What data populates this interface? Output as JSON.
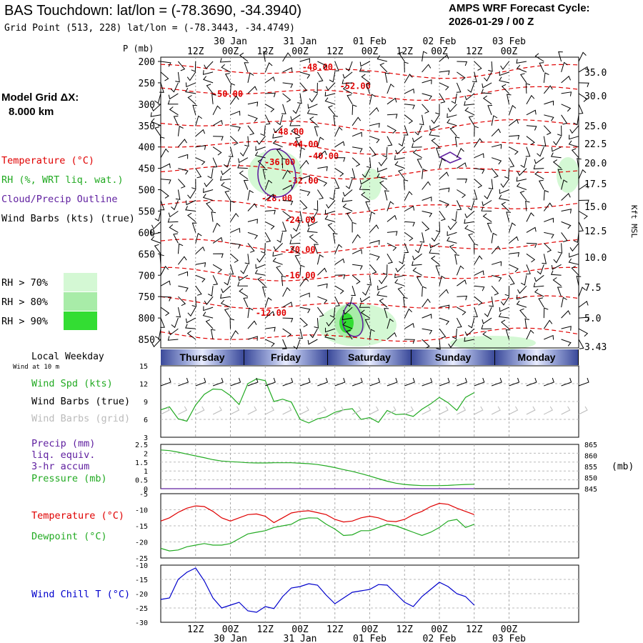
{
  "header": {
    "title": "BAS Touchdown:  lat/lon = (-78.3690, -34.3940)",
    "grid_point": "Grid Point (513, 228) lat/lon = (-78.3443, -34.4749)",
    "cycle_line1": "AMPS WRF Forecast Cycle:",
    "cycle_line2": "2026-01-29 / 00  Z"
  },
  "side": {
    "model_grid_line1": "Model Grid ΔX:",
    "model_grid_line2": "8.000 km",
    "temperature": "Temperature (°C)",
    "rh": "RH (%, WRT liq. wat.)",
    "cloud": "Cloud/Precip Outline",
    "barbs": "Wind Barbs (kts) (true)",
    "rh70": "RH > 70%",
    "rh80": "RH > 80%",
    "rh90": "RH > 90%",
    "local_weekday": "Local Weekday",
    "wind_at": "Wind at 10 m",
    "wind_spd": "Wind Spd (kts)",
    "wind_barbs_true": "Wind Barbs (true)",
    "wind_barbs_grid": "Wind Barbs (grid)",
    "precip1": "Precip (mm)",
    "precip2": "liq. equiv.",
    "precip3": "3-hr accum",
    "pressure": "Pressure (mb)",
    "temp2": "Temperature (°C)",
    "dewpoint": "Dewpoint (°C)",
    "windchill": "Wind Chill T (°C)"
  },
  "colors": {
    "temperature": "#e00000",
    "rh": "#22aa22",
    "cloud": "#6020a0",
    "grid_barbs": "#bbbbbb",
    "windchill": "#0000cc",
    "rh70": "#d4f8d4",
    "rh80": "#a8eca8",
    "rh90": "#33dd33"
  },
  "weekdays": [
    "Thursday",
    "Friday",
    "Saturday",
    "Sunday",
    "Monday"
  ],
  "chart_data": [
    {
      "type": "heatmap",
      "name": "upper-air time-height section",
      "x_tick_labels_top": [
        "12Z",
        "00Z",
        "12Z",
        "00Z",
        "12Z",
        "00Z",
        "12Z",
        "00Z",
        "12Z",
        "00Z"
      ],
      "x_date_labels_top": [
        "30 Jan",
        "31 Jan",
        "01 Feb",
        "02 Feb",
        "03 Feb"
      ],
      "ylabel": "P (mb)",
      "y_ticks_mb": [
        200,
        250,
        300,
        350,
        400,
        450,
        500,
        550,
        600,
        650,
        700,
        750,
        800,
        850
      ],
      "right_label": "Kft MSL",
      "right_ticks_kft": [
        "35.0",
        "30.0",
        "25.0",
        "22.5",
        "20.0",
        "17.5",
        "15.0",
        "12.5",
        "10.0",
        "7.5",
        "5.0",
        "3.43"
      ],
      "isotherm_labels": [
        {
          "text": "-48.00",
          "hour": 18,
          "mb": 213
        },
        {
          "text": "-52.00",
          "hour": 31,
          "mb": 258
        },
        {
          "text": "-50.00",
          "hour": -13,
          "mb": 276
        },
        {
          "text": "-48.00",
          "hour": 8,
          "mb": 365
        },
        {
          "text": "-44.00",
          "hour": 13,
          "mb": 394
        },
        {
          "text": "-40.00",
          "hour": 20,
          "mb": 421
        },
        {
          "text": "-36.00",
          "hour": 5,
          "mb": 436
        },
        {
          "text": "-32.00",
          "hour": 13,
          "mb": 479
        },
        {
          "text": "-28.00",
          "hour": 4,
          "mb": 520
        },
        {
          "text": "-24.00",
          "hour": 12,
          "mb": 571
        },
        {
          "text": "-20.00",
          "hour": 12,
          "mb": 640
        },
        {
          "text": "-16.00",
          "hour": 12,
          "mb": 700
        },
        {
          "text": "-12.00",
          "hour": 2,
          "mb": 788
        }
      ]
    },
    {
      "type": "line",
      "name": "10 m wind speed",
      "x_start_hour": -36,
      "x_step_hours": 3,
      "ylim": [
        3,
        15
      ],
      "y_ticks": [
        3,
        6,
        9,
        12,
        15
      ],
      "series": [
        {
          "name": "Wind Spd (kts)",
          "values": [
            7.6,
            8.1,
            6.1,
            5.7,
            8.4,
            10.2,
            11.1,
            11.0,
            10.0,
            8.5,
            12.0,
            12.8,
            12.5,
            9.0,
            9.4,
            8.9,
            6.0,
            5.4,
            6.1,
            6.4,
            7.2,
            7.6,
            7.8,
            6.0,
            6.3,
            5.5,
            7.5,
            6.8,
            6.9,
            6.5,
            7.7,
            8.6,
            9.7,
            8.8,
            7.5,
            9.7,
            10.5
          ]
        }
      ]
    },
    {
      "type": "line",
      "name": "precipitation and pressure",
      "x_start_hour": -36,
      "x_step_hours": 3,
      "ylim_left": [
        0,
        2.5
      ],
      "y_ticks_left": [
        0.0,
        0.5,
        1.0,
        1.5,
        2.0,
        2.5
      ],
      "ylim_right": [
        845,
        865
      ],
      "y_ticks_right": [
        845,
        850,
        855,
        860,
        865
      ],
      "series": [
        {
          "name": "Pressure (mb)",
          "axis": "right",
          "values": [
            862.5,
            862.2,
            861.5,
            860.6,
            859.8,
            859.0,
            858.1,
            857.5,
            857.2,
            857.0,
            856.7,
            856.6,
            856.6,
            856.7,
            856.7,
            856.7,
            856.5,
            856.3,
            855.9,
            855.3,
            854.5,
            853.6,
            852.8,
            851.8,
            850.7,
            849.5,
            848.4,
            847.5,
            846.9,
            846.6,
            846.4,
            846.4,
            846.4,
            846.5,
            846.7,
            846.9,
            847.0
          ]
        },
        {
          "name": "Precip (mm)",
          "axis": "left",
          "values": [
            0,
            0,
            0,
            0,
            0,
            0,
            0,
            0,
            0,
            0,
            0,
            0,
            0,
            0,
            0,
            0,
            0,
            0,
            0,
            0,
            0,
            0,
            0,
            0,
            0,
            0,
            0,
            0,
            0,
            0,
            0,
            0,
            0,
            0,
            0,
            0,
            0
          ]
        }
      ]
    },
    {
      "type": "line",
      "name": "temperature and dewpoint",
      "x_start_hour": -36,
      "x_step_hours": 3,
      "ylim": [
        -25,
        -5
      ],
      "y_ticks": [
        -25,
        -20,
        -15,
        -10,
        -5
      ],
      "series": [
        {
          "name": "Temperature (°C)",
          "values": [
            -13.5,
            -12.5,
            -10.8,
            -9.5,
            -8.8,
            -9.0,
            -10.5,
            -12.5,
            -13.5,
            -12.5,
            -11.5,
            -11.3,
            -12.0,
            -14.0,
            -12.5,
            -11.0,
            -10.5,
            -10.3,
            -10.9,
            -11.5,
            -13.0,
            -13.8,
            -13.5,
            -12.5,
            -12.0,
            -12.5,
            -13.5,
            -13.7,
            -13.0,
            -11.5,
            -10.5,
            -9.0,
            -8.0,
            -8.3,
            -9.5,
            -10.5,
            -11.5
          ]
        },
        {
          "name": "Dewpoint (°C)",
          "values": [
            -22.0,
            -22.8,
            -22.5,
            -21.5,
            -21.0,
            -20.5,
            -21.0,
            -21.0,
            -20.5,
            -19.0,
            -17.5,
            -17.0,
            -16.5,
            -15.5,
            -15.0,
            -14.5,
            -13.0,
            -12.5,
            -12.6,
            -14.5,
            -16.0,
            -18.0,
            -17.8,
            -16.5,
            -16.5,
            -15.5,
            -14.5,
            -15.0,
            -16.0,
            -17.0,
            -18.0,
            -17.0,
            -15.5,
            -13.5,
            -13.0,
            -15.5,
            -14.5
          ]
        }
      ]
    },
    {
      "type": "line",
      "name": "wind chill",
      "x_start_hour": -36,
      "x_step_hours": 3,
      "ylim": [
        -30,
        -10
      ],
      "y_ticks": [
        -30,
        -25,
        -20,
        -15,
        -10
      ],
      "series": [
        {
          "name": "Wind Chill T (°C)",
          "values": [
            -22.0,
            -21.5,
            -15.0,
            -12.5,
            -11.0,
            -15.5,
            -21.5,
            -25.0,
            -24.0,
            -23.0,
            -26.0,
            -26.5,
            -24.5,
            -25.2,
            -21.0,
            -18.0,
            -17.5,
            -16.5,
            -17.0,
            -20.5,
            -23.5,
            -21.5,
            -19.5,
            -19.0,
            -18.5,
            -16.8,
            -17.0,
            -20.0,
            -23.0,
            -24.5,
            -21.0,
            -18.5,
            -16.0,
            -17.5,
            -20.0,
            -21.0,
            -24.0
          ]
        }
      ]
    }
  ],
  "bottom_axis": {
    "time_labels": [
      "12Z",
      "00Z",
      "12Z",
      "00Z",
      "12Z",
      "00Z",
      "12Z",
      "00Z",
      "12Z",
      "00Z"
    ],
    "date_labels": [
      "30 Jan",
      "31 Jan",
      "01 Feb",
      "02 Feb",
      "03 Feb"
    ]
  }
}
